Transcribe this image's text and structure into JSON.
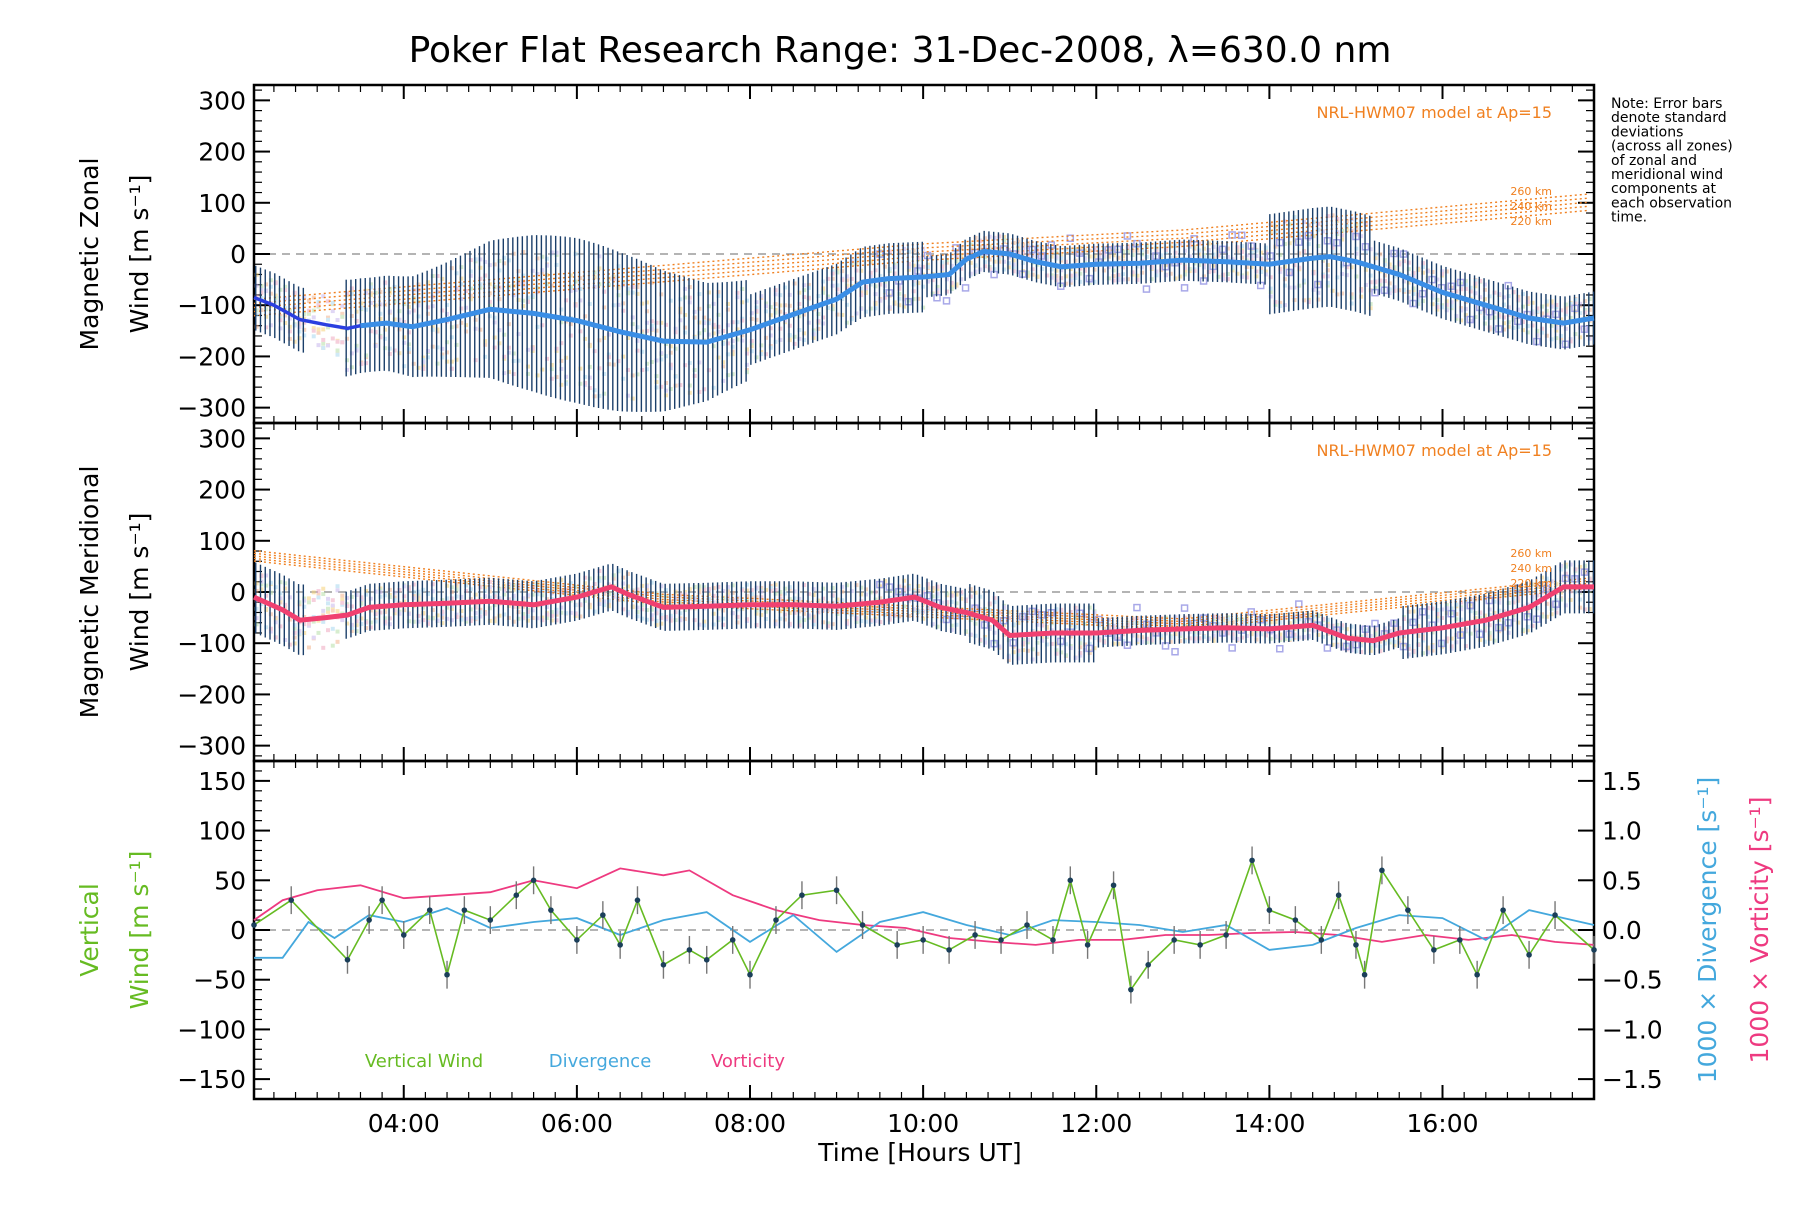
{
  "chart_data": {
    "title": "Poker Flat Research Range: 31-Dec-2008, λ=630.0 nm",
    "xlabel": "Time [Hours UT]",
    "x_ticks": [
      "04:00",
      "06:00",
      "08:00",
      "10:00",
      "12:00",
      "14:00",
      "16:00"
    ],
    "x_tick_hours": [
      4,
      6,
      8,
      10,
      12,
      14,
      16
    ],
    "xlim": [
      2.27,
      17.75
    ],
    "note_lines": [
      "Note: Error bars",
      "denote standard",
      "deviations",
      "(across all zones)",
      "of zonal and",
      "meridional wind",
      "components at",
      "each observation",
      "time."
    ],
    "model_label": "NRL-HWM07 model at Ap=15",
    "km_labels": [
      "260 km",
      "240 km",
      "220 km"
    ],
    "colors": {
      "zonal_line": "#3a8ee6",
      "zonal_early": "#2b3fe0",
      "meridional_line": "#f04070",
      "vertical": "#66bb22",
      "divergence": "#44a8dd",
      "vorticity": "#ee3a80",
      "model": "#f08020",
      "errbar": "#1b3f6a",
      "scatter": "#a8a8e8"
    },
    "panels": [
      {
        "type": "line",
        "ylabel_lines": [
          "Magnetic Zonal",
          "Wind [m s⁻¹]"
        ],
        "ylim": [
          -330,
          330
        ],
        "y_ticks": [
          "300",
          "200",
          "100",
          "0",
          "−100",
          "−200",
          "−300"
        ],
        "y_tick_values": [
          300,
          200,
          100,
          0,
          -100,
          -200,
          -300
        ],
        "series": [
          {
            "x": [
              2.27,
              2.5,
              2.8,
              3.1,
              3.35,
              3.5,
              3.8,
              4.1,
              4.5,
              5.0,
              5.5,
              6.0,
              6.5,
              7.0,
              7.5,
              8.0,
              8.5,
              9.0,
              9.3,
              9.6,
              10.0,
              10.3,
              10.5,
              10.7,
              11.0,
              11.3,
              11.6,
              12.0,
              12.5,
              13.0,
              13.5,
              14.0,
              14.5,
              14.7,
              15.0,
              15.5,
              16.0,
              16.5,
              17.0,
              17.4,
              17.75
            ],
            "y": [
              -85,
              -100,
              -128,
              -138,
              -145,
              -140,
              -135,
              -142,
              -128,
              -108,
              -116,
              -130,
              -152,
              -170,
              -172,
              -148,
              -118,
              -88,
              -55,
              -48,
              -45,
              -40,
              -10,
              5,
              0,
              -15,
              -25,
              -20,
              -18,
              -12,
              -15,
              -20,
              -8,
              -5,
              -15,
              -40,
              -75,
              -100,
              -125,
              -135,
              -125
            ]
          }
        ]
      },
      {
        "type": "line",
        "ylabel_lines": [
          "Magnetic Meridional",
          "Wind [m s⁻¹]"
        ],
        "ylim": [
          -330,
          330
        ],
        "y_ticks": [
          "300",
          "200",
          "100",
          "0",
          "−100",
          "−200",
          "−300"
        ],
        "y_tick_values": [
          300,
          200,
          100,
          0,
          -100,
          -200,
          -300
        ],
        "series": [
          {
            "x": [
              2.27,
              2.6,
              2.8,
              3.1,
              3.35,
              3.6,
              4.0,
              4.5,
              5.0,
              5.5,
              6.0,
              6.4,
              6.6,
              7.0,
              7.5,
              8.0,
              8.5,
              9.0,
              9.5,
              9.9,
              10.2,
              10.5,
              10.8,
              11.0,
              11.5,
              12.0,
              12.5,
              13.0,
              13.5,
              14.0,
              14.5,
              14.9,
              15.2,
              15.5,
              16.0,
              16.5,
              17.0,
              17.4,
              17.75
            ],
            "y": [
              -10,
              -35,
              -55,
              -50,
              -45,
              -30,
              -25,
              -22,
              -18,
              -25,
              -10,
              10,
              -5,
              -30,
              -28,
              -25,
              -25,
              -28,
              -20,
              -10,
              -30,
              -40,
              -55,
              -85,
              -80,
              -80,
              -75,
              -72,
              -70,
              -72,
              -65,
              -90,
              -95,
              -80,
              -70,
              -55,
              -30,
              10,
              10
            ]
          }
        ]
      },
      {
        "type": "line",
        "ylabel_lines": [
          "Vertical",
          "Wind [m s⁻¹]"
        ],
        "ylim": [
          -170,
          170
        ],
        "y_ticks": [
          "150",
          "100",
          "50",
          "0",
          "−50",
          "−100",
          "−150"
        ],
        "y_tick_values": [
          150,
          100,
          50,
          0,
          -50,
          -100,
          -150
        ],
        "right_axis": {
          "label_divergence": "1000 × Divergence [s⁻¹]",
          "label_vorticity": "1000 × Vorticity [s⁻¹]",
          "ylim": [
            -1.7,
            1.7
          ],
          "ticks": [
            "1.5",
            "1.0",
            "0.5",
            "0.0",
            "−0.5",
            "−1.0",
            "−1.5"
          ],
          "tick_values": [
            1.5,
            1.0,
            0.5,
            0.0,
            -0.5,
            -1.0,
            -1.5
          ]
        },
        "legend": [
          "Vertical Wind",
          "Divergence",
          "Vorticity"
        ],
        "series": [
          {
            "name": "Vertical Wind",
            "x": [
              2.27,
              2.7,
              3.35,
              3.6,
              3.75,
              4.0,
              4.3,
              4.5,
              4.7,
              5.0,
              5.3,
              5.5,
              5.7,
              6.0,
              6.3,
              6.5,
              6.7,
              7.0,
              7.3,
              7.5,
              7.8,
              8.0,
              8.3,
              8.6,
              9.0,
              9.3,
              9.7,
              10.0,
              10.3,
              10.6,
              10.9,
              11.2,
              11.5,
              11.7,
              11.9,
              12.2,
              12.4,
              12.6,
              12.9,
              13.2,
              13.5,
              13.8,
              14.0,
              14.3,
              14.6,
              14.8,
              15.0,
              15.1,
              15.3,
              15.6,
              15.9,
              16.2,
              16.4,
              16.7,
              17.0,
              17.3,
              17.75
            ],
            "y": [
              5,
              30,
              -30,
              10,
              30,
              -5,
              20,
              -45,
              20,
              10,
              35,
              50,
              20,
              -10,
              15,
              -15,
              30,
              -35,
              -20,
              -30,
              -10,
              -45,
              10,
              35,
              40,
              5,
              -15,
              -10,
              -20,
              -5,
              -10,
              5,
              -10,
              50,
              -15,
              45,
              -60,
              -35,
              -10,
              -15,
              -5,
              70,
              20,
              10,
              -10,
              35,
              -15,
              -45,
              60,
              20,
              -20,
              -10,
              -45,
              20,
              -25,
              15,
              -20
            ]
          },
          {
            "name": "Divergence",
            "x": [
              2.27,
              2.6,
              2.9,
              3.2,
              3.6,
              4.0,
              4.5,
              5.0,
              5.5,
              6.0,
              6.5,
              7.0,
              7.5,
              8.0,
              8.5,
              9.0,
              9.5,
              10.0,
              10.5,
              11.0,
              11.5,
              12.0,
              12.5,
              13.0,
              13.5,
              14.0,
              14.5,
              15.0,
              15.5,
              16.0,
              16.5,
              17.0,
              17.4,
              17.75
            ],
            "y": [
              -0.28,
              -0.28,
              0.08,
              -0.08,
              0.15,
              0.08,
              0.22,
              0.02,
              0.08,
              0.12,
              -0.05,
              0.1,
              0.18,
              -0.12,
              0.15,
              -0.22,
              0.08,
              0.18,
              0.05,
              -0.05,
              0.1,
              0.08,
              0.05,
              -0.02,
              0.05,
              -0.2,
              -0.15,
              0.02,
              0.15,
              0.12,
              -0.1,
              0.2,
              0.12,
              0.05
            ]
          },
          {
            "name": "Vorticity",
            "x": [
              2.27,
              2.6,
              3.0,
              3.5,
              4.0,
              4.5,
              5.0,
              5.5,
              6.0,
              6.5,
              7.0,
              7.3,
              7.8,
              8.3,
              8.8,
              9.3,
              9.8,
              10.3,
              10.8,
              11.3,
              11.8,
              12.3,
              12.8,
              13.3,
              13.8,
              14.3,
              14.8,
              15.3,
              15.8,
              16.3,
              16.8,
              17.3,
              17.75
            ],
            "y": [
              0.1,
              0.3,
              0.4,
              0.45,
              0.32,
              0.35,
              0.38,
              0.5,
              0.42,
              0.62,
              0.55,
              0.6,
              0.35,
              0.2,
              0.1,
              0.05,
              0.02,
              -0.08,
              -0.12,
              -0.15,
              -0.1,
              -0.1,
              -0.05,
              -0.05,
              -0.03,
              -0.02,
              -0.05,
              -0.12,
              -0.05,
              -0.1,
              -0.05,
              -0.12,
              -0.15
            ]
          }
        ]
      }
    ]
  }
}
